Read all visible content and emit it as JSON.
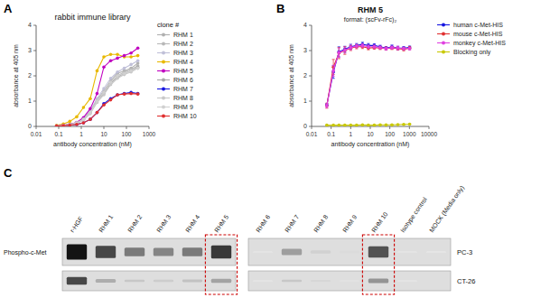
{
  "chart_data": [
    {
      "type": "line",
      "title": "rabbit immune library",
      "annotations": [
        "A"
      ],
      "xlabel": "antibody concentration (nM)",
      "ylabel": "absorbance at 405 nm",
      "log": "x",
      "xlim": [
        0.01,
        1000
      ],
      "xticks": [
        0.01,
        0.1,
        1,
        10,
        100,
        1000
      ],
      "ylim": [
        0,
        4
      ],
      "yticks": [
        0,
        1,
        2,
        3,
        4
      ],
      "grid": false,
      "legend": "right",
      "legend_title": "clone #",
      "x": [
        0.08,
        0.16,
        0.31,
        0.63,
        1.25,
        2.5,
        5,
        10,
        20,
        40,
        80,
        160,
        320
      ],
      "series": [
        {
          "name": "RHM 1",
          "color": "#b0b0b0",
          "marker": "circle",
          "values": [
            0.02,
            0.04,
            0.08,
            0.15,
            0.3,
            0.6,
            1.05,
            1.4,
            1.8,
            2.1,
            2.2,
            2.3,
            2.5
          ]
        },
        {
          "name": "RHM 2",
          "color": "#b8b8b8",
          "marker": "circle",
          "values": [
            0.02,
            0.04,
            0.07,
            0.13,
            0.27,
            0.55,
            1.0,
            1.35,
            1.75,
            2.0,
            2.15,
            2.25,
            2.4
          ]
        },
        {
          "name": "RHM 3",
          "color": "#c0c0d8",
          "marker": "circle",
          "values": [
            0.02,
            0.04,
            0.08,
            0.15,
            0.3,
            0.62,
            1.1,
            1.5,
            1.9,
            2.15,
            2.3,
            2.45,
            2.6
          ]
        },
        {
          "name": "RHM 4",
          "color": "#e8b800",
          "marker": "circle",
          "values": [
            0.04,
            0.1,
            0.2,
            0.38,
            0.75,
            1.1,
            2.2,
            2.75,
            2.85,
            2.85,
            2.75,
            2.75,
            2.8
          ]
        },
        {
          "name": "RHM 5",
          "color": "#c000c0",
          "marker": "circle",
          "values": [
            0.02,
            0.04,
            0.08,
            0.16,
            0.35,
            0.7,
            1.3,
            2.35,
            2.6,
            2.7,
            2.8,
            2.9,
            3.1
          ]
        },
        {
          "name": "RHM 6",
          "color": "#a8a8a8",
          "marker": "circle",
          "values": [
            0.02,
            0.04,
            0.08,
            0.14,
            0.28,
            0.55,
            1.0,
            1.3,
            1.7,
            1.95,
            2.1,
            2.2,
            2.35
          ]
        },
        {
          "name": "RHM 7",
          "color": "#1515e0",
          "marker": "circle",
          "values": [
            0.02,
            0.03,
            0.05,
            0.08,
            0.14,
            0.28,
            0.55,
            0.9,
            1.1,
            1.25,
            1.3,
            1.35,
            1.3
          ]
        },
        {
          "name": "RHM 8",
          "color": "#c8c8c8",
          "marker": "circle",
          "values": [
            0.02,
            0.03,
            0.06,
            0.12,
            0.25,
            0.5,
            0.95,
            1.25,
            1.65,
            1.9,
            2.05,
            2.15,
            2.3
          ]
        },
        {
          "name": "RHM 9",
          "color": "#d0d0d0",
          "marker": "circle",
          "values": [
            0.02,
            0.04,
            0.07,
            0.14,
            0.28,
            0.55,
            1.0,
            1.35,
            1.75,
            2.0,
            2.1,
            2.2,
            2.3
          ]
        },
        {
          "name": "RHM 10",
          "color": "#e03030",
          "marker": "circle",
          "values": [
            0.02,
            0.03,
            0.05,
            0.08,
            0.14,
            0.28,
            0.55,
            0.85,
            1.05,
            1.25,
            1.28,
            1.3,
            1.28
          ]
        }
      ]
    },
    {
      "type": "line",
      "title": "RHM 5",
      "subtitle": "format: (scFv-rFc)₂",
      "annotations": [
        "B"
      ],
      "xlabel": "antibody concentration (nM)",
      "ylabel": "absorbance at 405 nm",
      "log": "x",
      "xlim": [
        0.01,
        10000
      ],
      "xticks": [
        0.01,
        0.1,
        1,
        10,
        100,
        1000,
        10000
      ],
      "ylim": [
        0,
        4
      ],
      "yticks": [
        0,
        1,
        2,
        3,
        4
      ],
      "grid": false,
      "legend": "right",
      "x": [
        0.06,
        0.13,
        0.25,
        0.5,
        1.0,
        2.0,
        4.0,
        8.0,
        16,
        32,
        64,
        128,
        256,
        512,
        1024
      ],
      "series": [
        {
          "name": "human c-Met-HIS",
          "color": "#1515e0",
          "marker": "circle",
          "values": [
            0.85,
            2.15,
            2.95,
            3.05,
            3.15,
            3.2,
            3.25,
            3.2,
            3.2,
            3.15,
            3.1,
            3.15,
            3.1,
            3.1,
            3.12
          ],
          "errors": [
            0.05,
            0.25,
            0.2,
            0.12,
            0.1,
            0.08,
            0.08,
            0.08,
            0.07,
            0.06,
            0.06,
            0.07,
            0.07,
            0.06,
            0.06
          ]
        },
        {
          "name": "mouse c-Met-HIS",
          "color": "#e03030",
          "marker": "circle",
          "values": [
            0.82,
            2.35,
            2.9,
            3.0,
            3.1,
            3.15,
            3.15,
            3.1,
            3.12,
            3.1,
            3.08,
            3.1,
            3.08,
            3.05,
            3.1
          ],
          "errors": [
            0.1,
            0.3,
            0.22,
            0.15,
            0.1,
            0.08,
            0.07,
            0.07,
            0.07,
            0.06,
            0.06,
            0.06,
            0.06,
            0.06,
            0.06
          ]
        },
        {
          "name": "monkey c-Met-HIS",
          "color": "#e040e0",
          "marker": "circle",
          "values": [
            0.82,
            2.2,
            2.92,
            3.02,
            3.12,
            3.18,
            3.2,
            3.15,
            3.15,
            3.12,
            3.08,
            3.12,
            3.1,
            3.08,
            3.08
          ],
          "errors": [
            0.08,
            0.22,
            0.18,
            0.12,
            0.09,
            0.07,
            0.07,
            0.07,
            0.07,
            0.06,
            0.06,
            0.06,
            0.07,
            0.06,
            0.06
          ]
        },
        {
          "name": "Blocking only",
          "color": "#c8c800",
          "marker": "circle",
          "values": [
            0.05,
            0.05,
            0.05,
            0.05,
            0.05,
            0.05,
            0.06,
            0.05,
            0.05,
            0.06,
            0.06,
            0.06,
            0.07,
            0.08,
            0.09
          ],
          "errors": [
            0.01,
            0.01,
            0.01,
            0.01,
            0.01,
            0.01,
            0.01,
            0.01,
            0.01,
            0.01,
            0.01,
            0.01,
            0.01,
            0.01,
            0.01
          ]
        }
      ]
    },
    {
      "type": "blot",
      "annotations": [
        "C"
      ],
      "ylabel": "Phospho-c-Met",
      "categories": [
        "r-HGF",
        "RHM 1",
        "RHM 2",
        "RHM 3",
        "RHM 4",
        "RHM 5",
        "RHM 6",
        "RHM 7",
        "RHM 8",
        "RHM 9",
        "RHM 10",
        "Isotype control",
        "MOCK (Media only)"
      ],
      "colors": [
        null,
        null,
        null,
        null,
        null,
        "#cc0000",
        null,
        null,
        null,
        null,
        "#cc0000",
        null,
        null
      ],
      "series": [
        {
          "name": "PC-3",
          "values": [
            0.92,
            0.72,
            0.52,
            0.48,
            0.52,
            0.78,
            0.04,
            0.38,
            0.18,
            0.14,
            0.68,
            0.04,
            0.02
          ]
        },
        {
          "name": "CT-26",
          "values": [
            0.72,
            0.32,
            0.22,
            0.2,
            0.24,
            0.36,
            0.04,
            0.22,
            0.16,
            0.1,
            0.42,
            0.04,
            0.02
          ]
        }
      ]
    }
  ]
}
